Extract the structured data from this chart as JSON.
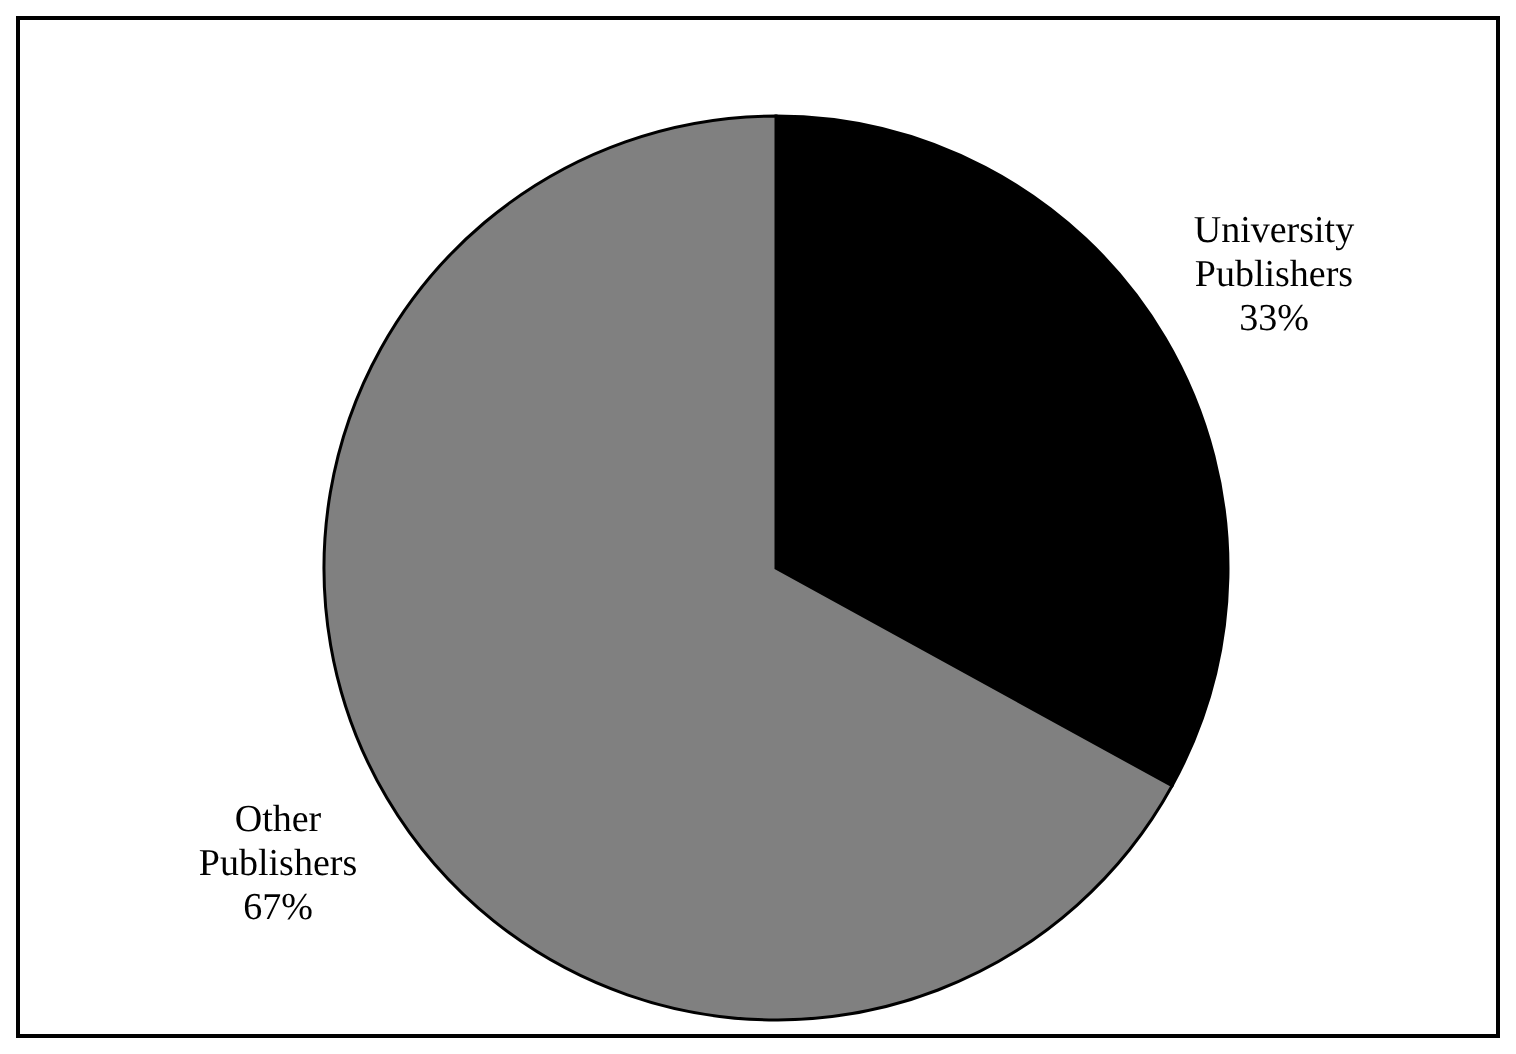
{
  "chart_data": {
    "type": "pie",
    "categories": [
      "University Publishers",
      "Other Publishers"
    ],
    "values": [
      33,
      67
    ],
    "colors": [
      "#000000",
      "#808080"
    ],
    "value_labels": [
      "33%",
      "67%"
    ]
  }
}
